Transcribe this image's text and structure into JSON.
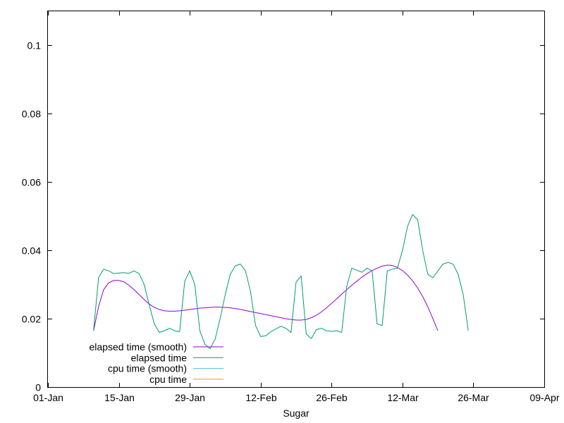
{
  "chart_data": {
    "type": "line",
    "xlabel": "Sugar",
    "ylabel": "",
    "title": "",
    "xlim_days": [
      0,
      98
    ],
    "ylim": [
      0,
      0.11
    ],
    "x_ticks": [
      {
        "day": 0,
        "label": "01-Jan"
      },
      {
        "day": 14,
        "label": "15-Jan"
      },
      {
        "day": 28,
        "label": "29-Jan"
      },
      {
        "day": 42,
        "label": "12-Feb"
      },
      {
        "day": 56,
        "label": "26-Feb"
      },
      {
        "day": 70,
        "label": "12-Mar"
      },
      {
        "day": 84,
        "label": "26-Mar"
      },
      {
        "day": 98,
        "label": "09-Apr"
      }
    ],
    "y_ticks": [
      {
        "value": 0,
        "label": "0"
      },
      {
        "value": 0.02,
        "label": "0.02"
      },
      {
        "value": 0.04,
        "label": "0.04"
      },
      {
        "value": 0.06,
        "label": "0.06"
      },
      {
        "value": 0.08,
        "label": "0.08"
      },
      {
        "value": 0.1,
        "label": "0.1"
      }
    ],
    "grid": false,
    "legend_position": "bottom-left",
    "series": [
      {
        "name": "elapsed time (smooth)",
        "color": "#9400d3",
        "points": [
          [
            9,
            0.0165
          ],
          [
            10,
            0.0235
          ],
          [
            11,
            0.0285
          ],
          [
            12,
            0.0305
          ],
          [
            13,
            0.0312
          ],
          [
            14,
            0.0312
          ],
          [
            15,
            0.0308
          ],
          [
            16,
            0.0298
          ],
          [
            17,
            0.0285
          ],
          [
            18,
            0.0271
          ],
          [
            19,
            0.0256
          ],
          [
            20,
            0.0243
          ],
          [
            21,
            0.0233
          ],
          [
            22,
            0.0227
          ],
          [
            23,
            0.0223
          ],
          [
            24,
            0.0222
          ],
          [
            25,
            0.0222
          ],
          [
            26,
            0.0223
          ],
          [
            27,
            0.0225
          ],
          [
            28,
            0.0227
          ],
          [
            29,
            0.0229
          ],
          [
            30,
            0.0231
          ],
          [
            31,
            0.0232
          ],
          [
            32,
            0.0233
          ],
          [
            33,
            0.0234
          ],
          [
            34,
            0.0234
          ],
          [
            35,
            0.0233
          ],
          [
            36,
            0.0232
          ],
          [
            37,
            0.023
          ],
          [
            38,
            0.0227
          ],
          [
            39,
            0.0224
          ],
          [
            40,
            0.0221
          ],
          [
            41,
            0.0218
          ],
          [
            42,
            0.0215
          ],
          [
            43,
            0.0212
          ],
          [
            44,
            0.0209
          ],
          [
            45,
            0.0206
          ],
          [
            46,
            0.0203
          ],
          [
            47,
            0.02
          ],
          [
            48,
            0.0198
          ],
          [
            49,
            0.0196
          ],
          [
            50,
            0.0196
          ],
          [
            51,
            0.0198
          ],
          [
            52,
            0.0203
          ],
          [
            53,
            0.021
          ],
          [
            54,
            0.022
          ],
          [
            55,
            0.0232
          ],
          [
            56,
            0.0245
          ],
          [
            57,
            0.0258
          ],
          [
            58,
            0.0272
          ],
          [
            59,
            0.0285
          ],
          [
            60,
            0.0298
          ],
          [
            61,
            0.031
          ],
          [
            62,
            0.0322
          ],
          [
            63,
            0.0332
          ],
          [
            64,
            0.0341
          ],
          [
            65,
            0.0348
          ],
          [
            66,
            0.0354
          ],
          [
            67,
            0.0357
          ],
          [
            68,
            0.0356
          ],
          [
            69,
            0.035
          ],
          [
            70,
            0.0341
          ],
          [
            71,
            0.0328
          ],
          [
            72,
            0.0311
          ],
          [
            73,
            0.029
          ],
          [
            74,
            0.0265
          ],
          [
            75,
            0.0235
          ],
          [
            76,
            0.02
          ],
          [
            77,
            0.0165
          ]
        ]
      },
      {
        "name": "elapsed time",
        "color": "#009e73",
        "points": [
          [
            9,
            0.0165
          ],
          [
            10,
            0.032
          ],
          [
            11,
            0.0345
          ],
          [
            12,
            0.034
          ],
          [
            13,
            0.0332
          ],
          [
            14,
            0.0334
          ],
          [
            15,
            0.0335
          ],
          [
            16,
            0.0333
          ],
          [
            17,
            0.034
          ],
          [
            18,
            0.0332
          ],
          [
            19,
            0.03
          ],
          [
            20,
            0.024
          ],
          [
            21,
            0.0185
          ],
          [
            22,
            0.016
          ],
          [
            23,
            0.0165
          ],
          [
            24,
            0.0172
          ],
          [
            25,
            0.0165
          ],
          [
            26,
            0.0162
          ],
          [
            27,
            0.031
          ],
          [
            28,
            0.034
          ],
          [
            29,
            0.03
          ],
          [
            30,
            0.0165
          ],
          [
            31,
            0.0125
          ],
          [
            32,
            0.0112
          ],
          [
            33,
            0.014
          ],
          [
            34,
            0.02
          ],
          [
            35,
            0.027
          ],
          [
            36,
            0.033
          ],
          [
            37,
            0.0355
          ],
          [
            38,
            0.036
          ],
          [
            39,
            0.034
          ],
          [
            40,
            0.028
          ],
          [
            41,
            0.018
          ],
          [
            42,
            0.0148
          ],
          [
            43,
            0.015
          ],
          [
            44,
            0.0162
          ],
          [
            45,
            0.017
          ],
          [
            46,
            0.0178
          ],
          [
            47,
            0.0172
          ],
          [
            48,
            0.016
          ],
          [
            49,
            0.0308
          ],
          [
            50,
            0.0325
          ],
          [
            51,
            0.0155
          ],
          [
            52,
            0.0142
          ],
          [
            53,
            0.0168
          ],
          [
            54,
            0.0172
          ],
          [
            55,
            0.0165
          ],
          [
            56,
            0.0163
          ],
          [
            57,
            0.0165
          ],
          [
            58,
            0.016
          ],
          [
            59,
            0.0295
          ],
          [
            60,
            0.0348
          ],
          [
            61,
            0.0342
          ],
          [
            62,
            0.0336
          ],
          [
            63,
            0.0348
          ],
          [
            64,
            0.034
          ],
          [
            65,
            0.0185
          ],
          [
            66,
            0.018
          ],
          [
            67,
            0.034
          ],
          [
            68,
            0.0345
          ],
          [
            69,
            0.0348
          ],
          [
            70,
            0.04
          ],
          [
            71,
            0.047
          ],
          [
            72,
            0.0505
          ],
          [
            73,
            0.049
          ],
          [
            74,
            0.04
          ],
          [
            75,
            0.033
          ],
          [
            76,
            0.032
          ],
          [
            77,
            0.034
          ],
          [
            78,
            0.036
          ],
          [
            79,
            0.0365
          ],
          [
            80,
            0.036
          ],
          [
            81,
            0.033
          ],
          [
            82,
            0.027
          ],
          [
            83,
            0.0165
          ]
        ]
      },
      {
        "name": "cpu time (smooth)",
        "color": "#56b4e9",
        "points": []
      },
      {
        "name": "cpu time",
        "color": "#e69f00",
        "points": []
      }
    ]
  }
}
